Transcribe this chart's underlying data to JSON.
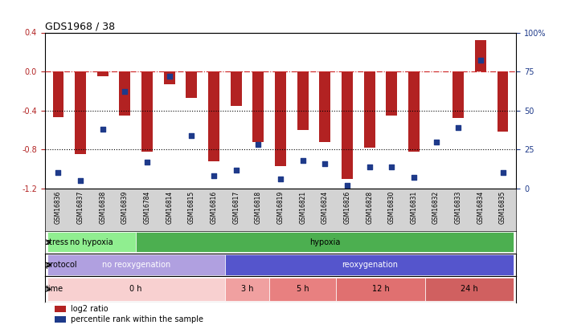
{
  "title": "GDS1968 / 38",
  "samples": [
    "GSM16836",
    "GSM16837",
    "GSM16838",
    "GSM16839",
    "GSM16784",
    "GSM16814",
    "GSM16815",
    "GSM16816",
    "GSM16817",
    "GSM16818",
    "GSM16819",
    "GSM16821",
    "GSM16824",
    "GSM16826",
    "GSM16828",
    "GSM16830",
    "GSM16831",
    "GSM16832",
    "GSM16833",
    "GSM16834",
    "GSM16835"
  ],
  "log2_ratio": [
    -0.47,
    -0.85,
    -0.05,
    -0.45,
    -0.82,
    -0.13,
    -0.27,
    -0.92,
    -0.35,
    -0.72,
    -0.97,
    -0.6,
    -0.72,
    -1.1,
    -0.78,
    -0.45,
    -0.82,
    -0.0,
    -0.48,
    0.32,
    -0.62
  ],
  "percentile": [
    10,
    5,
    38,
    62,
    17,
    72,
    34,
    8,
    12,
    28,
    6,
    18,
    16,
    2,
    14,
    14,
    7,
    30,
    39,
    82,
    10
  ],
  "bar_color": "#b22222",
  "dot_color": "#1e3a8a",
  "ylim_left": [
    -1.2,
    0.4
  ],
  "ylim_right": [
    0,
    100
  ],
  "yticks_left": [
    -1.2,
    -0.8,
    -0.4,
    0.0,
    0.4
  ],
  "yticks_right": [
    0,
    25,
    50,
    75,
    100
  ],
  "ytick_labels_right": [
    "0",
    "25",
    "50",
    "75",
    "100%"
  ],
  "hlines": [
    0.0,
    -0.4,
    -0.8
  ],
  "stress_groups": [
    {
      "label": "no hypoxia",
      "start": 0,
      "end": 4,
      "color": "#90ee90"
    },
    {
      "label": "hypoxia",
      "start": 4,
      "end": 21,
      "color": "#4caf50"
    }
  ],
  "protocol_groups": [
    {
      "label": "no reoxygenation",
      "start": 0,
      "end": 8,
      "color": "#b0a0e0"
    },
    {
      "label": "reoxygenation",
      "start": 8,
      "end": 21,
      "color": "#5555cc"
    }
  ],
  "time_groups": [
    {
      "label": "0 h",
      "start": 0,
      "end": 8,
      "color": "#f8d0d0"
    },
    {
      "label": "3 h",
      "start": 8,
      "end": 10,
      "color": "#f0a0a0"
    },
    {
      "label": "5 h",
      "start": 10,
      "end": 13,
      "color": "#e88080"
    },
    {
      "label": "12 h",
      "start": 13,
      "end": 17,
      "color": "#e07070"
    },
    {
      "label": "24 h",
      "start": 17,
      "end": 21,
      "color": "#d06060"
    }
  ],
  "row_labels": [
    "stress",
    "protocol",
    "time"
  ],
  "legend_items": [
    {
      "color": "#b22222",
      "label": "log2 ratio"
    },
    {
      "color": "#1e3a8a",
      "label": "percentile rank within the sample"
    }
  ],
  "bg_color": "#ffffff",
  "tick_label_area_color": "#d3d3d3"
}
